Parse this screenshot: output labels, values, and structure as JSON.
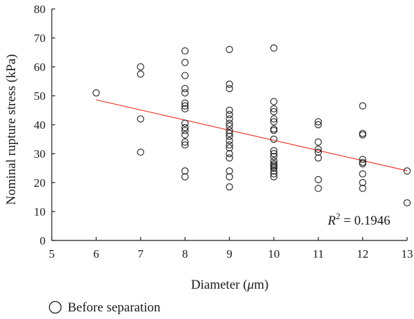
{
  "chart_data": {
    "type": "scatter",
    "xlabel": "Diameter (μm)",
    "xlabel_parts": {
      "prefix": "Diameter (",
      "unit_italic": "μ",
      "suffix": "m)"
    },
    "ylabel": "Nominal rupture stress (kPa)",
    "xlim": [
      5,
      13
    ],
    "ylim": [
      0,
      80
    ],
    "xticks": [
      5,
      6,
      7,
      8,
      9,
      10,
      11,
      12,
      13
    ],
    "yticks": [
      0,
      10,
      20,
      30,
      40,
      50,
      60,
      70,
      80
    ],
    "grid": false,
    "legend_position": "bottom-left",
    "series": [
      {
        "name": "Before separation",
        "marker": "open-circle",
        "color": "#1a1a1a",
        "points": [
          [
            6,
            51
          ],
          [
            7,
            60
          ],
          [
            7,
            57.5
          ],
          [
            7,
            42
          ],
          [
            7,
            30.5
          ],
          [
            8,
            65.5
          ],
          [
            8,
            61.5
          ],
          [
            8,
            57
          ],
          [
            8,
            52.5
          ],
          [
            8,
            51
          ],
          [
            8,
            47.5
          ],
          [
            8,
            46.5
          ],
          [
            8,
            45.5
          ],
          [
            8,
            40.5
          ],
          [
            8,
            39
          ],
          [
            8,
            38
          ],
          [
            8,
            36.5
          ],
          [
            8,
            34
          ],
          [
            8,
            33
          ],
          [
            8,
            24
          ],
          [
            8,
            22
          ],
          [
            9,
            66
          ],
          [
            9,
            54
          ],
          [
            9,
            52.5
          ],
          [
            9,
            45
          ],
          [
            9,
            43.5
          ],
          [
            9,
            42
          ],
          [
            9,
            40.5
          ],
          [
            9,
            39.5
          ],
          [
            9,
            38
          ],
          [
            9,
            37
          ],
          [
            9,
            36
          ],
          [
            9,
            34.5
          ],
          [
            9,
            33
          ],
          [
            9,
            32
          ],
          [
            9,
            30
          ],
          [
            9,
            28.5
          ],
          [
            9,
            24
          ],
          [
            9,
            22
          ],
          [
            9,
            18.5
          ],
          [
            10,
            66.5
          ],
          [
            10,
            48
          ],
          [
            10,
            45.5
          ],
          [
            10,
            44.5
          ],
          [
            10,
            42
          ],
          [
            10,
            41
          ],
          [
            10,
            38.5
          ],
          [
            10,
            38
          ],
          [
            10,
            35
          ],
          [
            10,
            31
          ],
          [
            10,
            30
          ],
          [
            10,
            29
          ],
          [
            10,
            27.5
          ],
          [
            10,
            26.5
          ],
          [
            10,
            26
          ],
          [
            10,
            25.5
          ],
          [
            10,
            25
          ],
          [
            10,
            24
          ],
          [
            10,
            23
          ],
          [
            10,
            22
          ],
          [
            11,
            41
          ],
          [
            11,
            40
          ],
          [
            11,
            34
          ],
          [
            11,
            31.5
          ],
          [
            11,
            30.5
          ],
          [
            11,
            28.5
          ],
          [
            11,
            21
          ],
          [
            11,
            18
          ],
          [
            12,
            46.5
          ],
          [
            12,
            37
          ],
          [
            12,
            36.5
          ],
          [
            12,
            28
          ],
          [
            12,
            27
          ],
          [
            12,
            26.5
          ],
          [
            12,
            23
          ],
          [
            12,
            20
          ],
          [
            12,
            18
          ],
          [
            13,
            24
          ],
          [
            13,
            13
          ]
        ]
      }
    ],
    "trendline": {
      "type": "linear",
      "color": "#e8291c",
      "x": [
        6,
        13
      ],
      "y": [
        48.6,
        24.1
      ]
    },
    "annotation": {
      "r_symbol": "R",
      "r_exponent": "2",
      "equals_value": " = 0.1946"
    },
    "legend": [
      {
        "label": "Before separation",
        "marker": "open-circle"
      }
    ]
  }
}
